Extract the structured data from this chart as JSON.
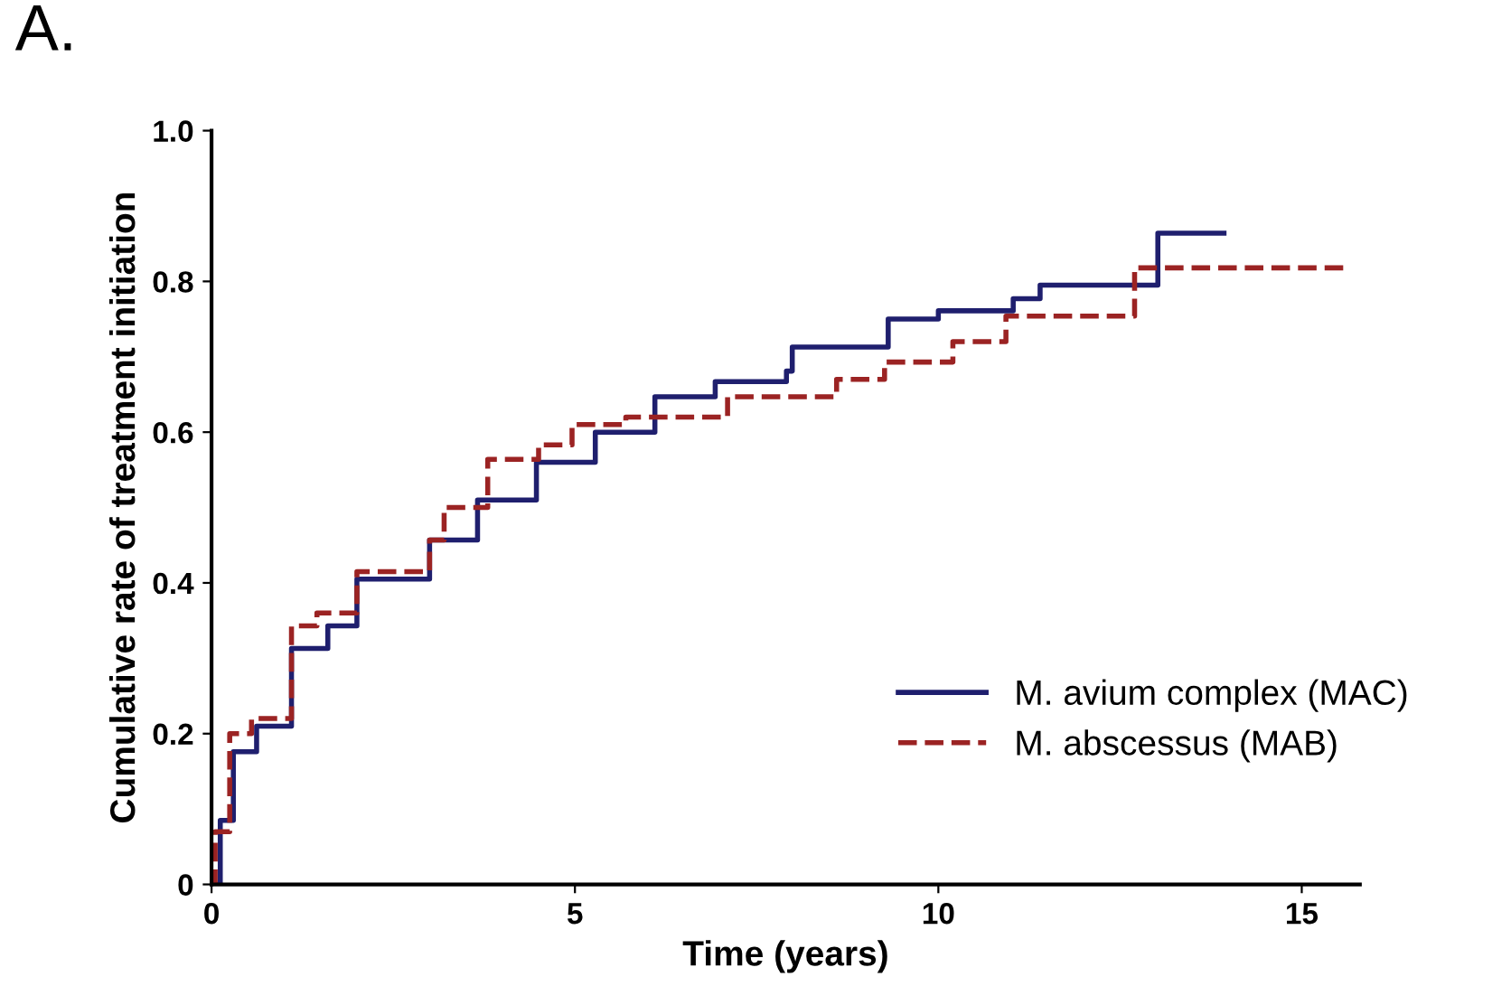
{
  "chart_data": {
    "type": "step",
    "title": "A.",
    "xlabel": "Time (years)",
    "ylabel": "Cumulative rate of treatment initiation",
    "xlim": [
      0,
      15.8
    ],
    "ylim": [
      0,
      1.0
    ],
    "xticks": [
      0,
      5,
      10,
      15
    ],
    "yticks": [
      {
        "value": 0,
        "label": "0"
      },
      {
        "value": 0.2,
        "label": "0.2"
      },
      {
        "value": 0.4,
        "label": "0.4"
      },
      {
        "value": 0.6,
        "label": "0.6"
      },
      {
        "value": 0.8,
        "label": "0.8"
      },
      {
        "value": 1.0,
        "label": "1.0"
      }
    ],
    "grid": false,
    "legend": "bottom right",
    "series": [
      {
        "name": "M. avium complex (MAC)",
        "color": "#1f1f6e",
        "line_style": "solid",
        "x": [
          0,
          0.12,
          0.3,
          0.62,
          1.1,
          1.6,
          2.0,
          3.0,
          3.66,
          4.47,
          5.28,
          6.1,
          6.93,
          7.91,
          7.99,
          9.31,
          10.0,
          11.03,
          11.4,
          13.02,
          13.93
        ],
        "values": [
          0,
          0.085,
          0.176,
          0.21,
          0.313,
          0.343,
          0.405,
          0.457,
          0.51,
          0.56,
          0.6,
          0.647,
          0.667,
          0.681,
          0.713,
          0.75,
          0.761,
          0.777,
          0.795,
          0.864,
          0.864
        ]
      },
      {
        "name": "M. abscessus (MAB)",
        "color": "#9b2323",
        "line_style": "dashed",
        "x": [
          0,
          0.05,
          0.25,
          0.55,
          1.1,
          1.45,
          2.0,
          3.0,
          3.2,
          3.8,
          4.5,
          4.96,
          5.7,
          6.44,
          7.1,
          8.6,
          9.26,
          10.2,
          10.93,
          12.7,
          15.65
        ],
        "values": [
          0,
          0.07,
          0.2,
          0.22,
          0.343,
          0.36,
          0.415,
          0.457,
          0.5,
          0.564,
          0.583,
          0.61,
          0.62,
          0.62,
          0.647,
          0.67,
          0.693,
          0.72,
          0.754,
          0.818,
          0.818
        ]
      }
    ]
  }
}
